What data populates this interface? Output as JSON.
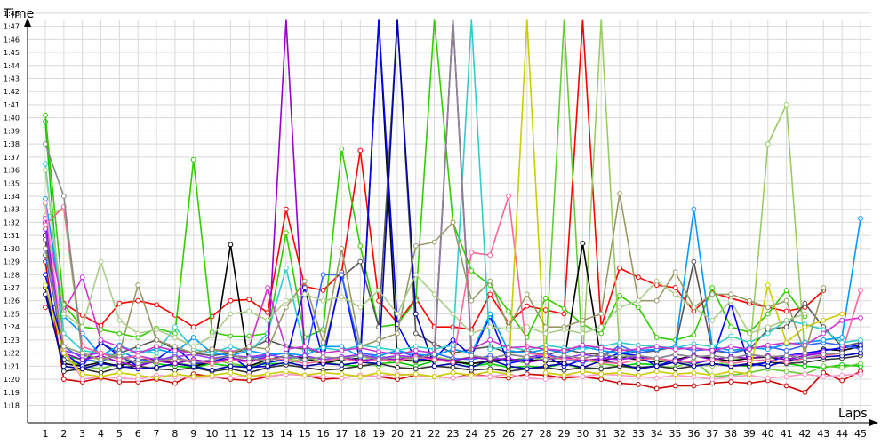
{
  "chart_data": {
    "type": "line",
    "xlabel": "Laps",
    "ylabel": "Time",
    "grid": true,
    "legend": "none",
    "x": [
      1,
      2,
      3,
      4,
      5,
      6,
      7,
      8,
      9,
      10,
      11,
      12,
      13,
      14,
      15,
      16,
      17,
      18,
      19,
      20,
      21,
      22,
      23,
      24,
      25,
      26,
      27,
      28,
      29,
      30,
      31,
      32,
      33,
      34,
      35,
      36,
      37,
      38,
      39,
      40,
      41,
      42,
      43,
      44,
      45
    ],
    "y_ticks": [
      "1:18",
      "1:19",
      "1:20",
      "1:21",
      "1:22",
      "1:23",
      "1:24",
      "1:25",
      "1:26",
      "1:27",
      "1:28",
      "1:29",
      "1:30",
      "1:31",
      "1:32",
      "1:33",
      "1:34",
      "1:35",
      "1:36",
      "1:37",
      "1:38",
      "1:39",
      "1:40",
      "1:41",
      "1:42",
      "1:43",
      "1:44",
      "1:45",
      "1:46",
      "1:47",
      "1:48"
    ],
    "ylim": [
      77.5,
      110
    ],
    "series": [
      {
        "color": "#ff0000",
        "values": [
          85.5,
          85.8,
          84.9,
          84.1,
          85.8,
          86.0,
          85.7,
          84.9,
          84.0,
          84.8,
          86.0,
          86.1,
          85.1,
          93.0,
          87.1,
          86.8,
          88.2,
          97.5,
          86.0,
          84.3,
          86.2,
          84.0,
          84.0,
          83.8,
          86.5,
          84.3,
          85.6,
          85.3,
          85.0,
          107.5,
          84.0,
          88.5,
          87.8,
          87.2,
          87.0,
          85.2,
          86.6,
          86.2,
          85.8,
          85.5,
          85.2,
          85.5,
          86.8,
          null,
          null
        ]
      },
      {
        "color": "#cc0000",
        "values": [
          89.0,
          80.0,
          79.8,
          80.1,
          79.8,
          79.8,
          80.0,
          79.7,
          80.4,
          80.2,
          80.0,
          79.9,
          80.2,
          80.4,
          80.3,
          80.0,
          80.1,
          80.3,
          80.2,
          80.0,
          80.3,
          80.2,
          80.1,
          80.4,
          80.2,
          80.1,
          80.4,
          80.3,
          80.1,
          80.2,
          80.0,
          79.7,
          79.6,
          79.3,
          79.5,
          79.5,
          79.7,
          79.8,
          79.7,
          79.9,
          79.5,
          79.0,
          80.5,
          79.9,
          80.6
        ]
      },
      {
        "color": "#00cc00",
        "values": [
          99.7,
          81.8,
          81.5,
          81.3,
          81.0,
          81.5,
          81.2,
          81.0,
          80.9,
          81.2,
          81.0,
          81.0,
          81.2,
          81.2,
          81.5,
          81.3,
          81.1,
          81.0,
          81.2,
          81.3,
          81.0,
          81.4,
          81.5,
          81.0,
          81.2,
          80.9,
          81.0,
          80.9,
          81.2,
          80.8,
          80.8,
          81.0,
          81.2,
          81.1,
          81.3,
          81.0,
          81.2,
          81.1,
          81.0,
          81.3,
          81.2,
          81.0,
          80.9,
          81.1,
          81.0
        ]
      },
      {
        "color": "#33cc00",
        "values": [
          100.2,
          85.7,
          84.0,
          83.8,
          83.5,
          83.2,
          83.9,
          83.5,
          96.8,
          83.6,
          83.3,
          83.3,
          83.5,
          91.2,
          83.2,
          83.8,
          97.6,
          90.2,
          84.0,
          84.2,
          86.0,
          110.0,
          92.0,
          88.3,
          87.2,
          85.2,
          83.2,
          86.2,
          85.4,
          84.2,
          83.5,
          86.4,
          85.5,
          83.2,
          83.0,
          83.4,
          87.0,
          84.0,
          83.6,
          85.0,
          86.8,
          84.8,
          null,
          null,
          null
        ]
      },
      {
        "color": "#66cc33",
        "values": [
          93.4,
          81.5,
          81.0,
          80.8,
          81.2,
          81.0,
          81.4,
          81.3,
          81.0,
          81.5,
          81.2,
          81.0,
          81.3,
          81.5,
          81.7,
          81.3,
          81.6,
          81.4,
          81.0,
          81.6,
          81.3,
          81.5,
          81.4,
          81.2,
          81.3,
          81.5,
          81.2,
          81.8,
          110.0,
          81.5,
          81.2,
          81.0,
          80.8,
          81.0,
          80.9,
          81.5,
          80.2,
          80.3,
          80.5,
          80.8,
          80.6,
          80.4,
          81.0,
          80.9,
          81.2
        ]
      },
      {
        "color": "#99cc66",
        "values": [
          92.5,
          93.0,
          81.8,
          81.5,
          81.4,
          81.2,
          81.7,
          81.3,
          81.0,
          81.3,
          81.5,
          81.7,
          81.6,
          81.4,
          81.5,
          81.7,
          81.6,
          81.4,
          81.9,
          81.3,
          81.6,
          81.7,
          81.5,
          81.7,
          81.6,
          81.4,
          81.7,
          81.5,
          81.6,
          81.4,
          110.0,
          81.9,
          81.7,
          81.5,
          81.3,
          81.2,
          81.0,
          81.5,
          81.6,
          98.0,
          101.0,
          81.8,
          82.2,
          null,
          null
        ]
      },
      {
        "color": "#000000",
        "values": [
          91.0,
          81.2,
          81.0,
          81.3,
          81.0,
          81.5,
          81.5,
          81.2,
          81.0,
          81.3,
          90.3,
          81.0,
          81.5,
          81.8,
          81.6,
          81.2,
          81.5,
          81.6,
          110.0,
          81.5,
          81.4,
          81.5,
          81.3,
          81.2,
          81.4,
          81.5,
          81.5,
          81.4,
          81.3,
          90.4,
          81.4,
          81.7,
          81.5,
          81.3,
          81.5,
          81.8,
          81.6,
          81.4,
          81.6,
          81.7,
          81.5,
          81.8,
          82.3,
          82.2,
          82.5
        ]
      },
      {
        "color": "#333333",
        "values": [
          87.0,
          80.6,
          80.8,
          80.5,
          80.9,
          81.0,
          80.8,
          80.7,
          80.9,
          80.6,
          80.8,
          80.5,
          80.9,
          81.1,
          80.9,
          80.7,
          80.8,
          81.0,
          81.2,
          80.9,
          80.8,
          81.0,
          80.9,
          80.7,
          80.8,
          80.6,
          80.8,
          80.9,
          80.7,
          80.9,
          80.8,
          81.0,
          80.9,
          81.0,
          80.8,
          81.0,
          81.2,
          81.0,
          81.1,
          81.3,
          81.2,
          81.3,
          81.5,
          81.6,
          81.8
        ]
      },
      {
        "color": "#555555",
        "values": [
          90.7,
          81.5,
          81.2,
          82.8,
          82.0,
          82.5,
          83.0,
          82.3,
          82.0,
          81.8,
          82.0,
          82.3,
          83.0,
          82.5,
          82.3,
          82.0,
          87.8,
          89.0,
          84.0,
          110.0,
          83.5,
          82.7,
          82.0,
          82.3,
          82.5,
          82.0,
          82.2,
          81.8,
          82.3,
          82.0,
          81.9,
          82.3,
          82.0,
          82.2,
          82.5,
          89.0,
          82.2,
          82.0,
          82.3,
          83.8,
          84.0,
          85.8,
          84.0,
          82.5,
          82.8
        ]
      },
      {
        "color": "#0000ff",
        "values": [
          88.0,
          82.0,
          81.0,
          82.8,
          81.8,
          81.0,
          81.5,
          82.5,
          81.2,
          81.3,
          81.8,
          80.8,
          81.3,
          81.5,
          87.0,
          81.5,
          88.0,
          81.3,
          107.6,
          84.2,
          81.5,
          81.6,
          83.0,
          81.8,
          84.8,
          81.2,
          81.5,
          81.8,
          81.0,
          81.5,
          81.5,
          82.0,
          81.8,
          81.0,
          81.5,
          81.2,
          81.5,
          85.8,
          81.0,
          81.3,
          81.8,
          82.0,
          82.2,
          82.4,
          82.6
        ]
      },
      {
        "color": "#0000aa",
        "values": [
          86.5,
          81.0,
          80.8,
          81.2,
          81.0,
          80.8,
          80.9,
          81.2,
          81.0,
          80.7,
          81.0,
          80.9,
          81.0,
          81.3,
          81.0,
          81.2,
          81.1,
          81.3,
          81.2,
          110.0,
          85.0,
          81.0,
          81.2,
          80.9,
          81.5,
          81.0,
          80.8,
          81.0,
          81.2,
          80.9,
          81.4,
          81.2,
          80.8,
          81.0,
          81.3,
          81.0,
          81.2,
          81.0,
          81.2,
          81.0,
          81.4,
          81.6,
          81.7,
          81.8,
          82.0
        ]
      },
      {
        "color": "#3366ff",
        "values": [
          89.5,
          82.5,
          81.6,
          81.3,
          82.2,
          81.5,
          81.4,
          81.8,
          81.2,
          81.5,
          81.8,
          81.6,
          81.8,
          82.0,
          81.4,
          88.0,
          88.0,
          82.0,
          81.8,
          82.2,
          81.7,
          82.0,
          81.6,
          81.5,
          81.8,
          81.3,
          81.6,
          82.0,
          81.5,
          81.3,
          81.6,
          82.6,
          82.0,
          82.3,
          82.5,
          82.2,
          82.3,
          82.0,
          82.4,
          82.5,
          82.2,
          82.6,
          82.8,
          82.6,
          82.3
        ]
      },
      {
        "color": "#0099ff",
        "values": [
          93.8,
          84.8,
          83.5,
          81.8,
          82.6,
          82.0,
          82.3,
          82.0,
          83.2,
          82.0,
          81.8,
          82.2,
          81.9,
          82.0,
          81.8,
          82.5,
          82.5,
          81.7,
          81.8,
          82.2,
          81.9,
          81.8,
          82.3,
          82.0,
          85.0,
          82.2,
          82.0,
          82.3,
          82.0,
          82.5,
          82.2,
          82.0,
          82.2,
          82.3,
          82.5,
          93.0,
          82.5,
          82.2,
          82.4,
          82.3,
          82.7,
          82.8,
          83.0,
          83.2,
          92.3
        ]
      },
      {
        "color": "#33cccc",
        "values": [
          96.5,
          83.5,
          82.2,
          82.0,
          81.8,
          82.2,
          82.0,
          84.0,
          82.3,
          82.0,
          82.5,
          82.1,
          83.5,
          88.5,
          82.2,
          82.4,
          82.2,
          82.6,
          82.4,
          82.2,
          82.5,
          82.3,
          82.6,
          110.0,
          82.3,
          82.5,
          82.2,
          82.6,
          82.4,
          82.3,
          82.5,
          82.8,
          82.6,
          82.5,
          82.4,
          82.7,
          82.5,
          83.3,
          82.8,
          83.5,
          84.5,
          84.2,
          83.8,
          82.8,
          83.0
        ]
      },
      {
        "color": "#9900cc",
        "values": [
          92.0,
          82.0,
          81.5,
          81.8,
          81.3,
          81.0,
          81.4,
          81.2,
          81.5,
          81.3,
          81.6,
          81.4,
          81.7,
          110.0,
          81.8,
          81.5,
          81.7,
          81.4,
          81.6,
          81.5,
          81.8,
          81.6,
          81.4,
          81.7,
          81.5,
          81.6,
          81.3,
          81.5,
          81.7,
          81.4,
          81.6,
          81.5,
          81.7,
          81.6,
          81.4,
          81.8,
          81.5,
          81.7,
          81.6,
          81.8,
          81.5,
          81.8,
          82.0,
          null,
          null
        ]
      },
      {
        "color": "#cc33cc",
        "values": [
          92.3,
          85.2,
          87.8,
          83.0,
          82.5,
          82.0,
          82.5,
          82.2,
          82.0,
          82.3,
          82.1,
          82.4,
          87.0,
          82.3,
          82.5,
          82.0,
          82.2,
          82.4,
          82.1,
          81.9,
          82.2,
          82.0,
          110.0,
          82.3,
          83.0,
          82.4,
          82.5,
          82.3,
          82.2,
          82.6,
          82.4,
          82.2,
          82.3,
          82.5,
          82.3,
          82.4,
          82.2,
          82.5,
          82.3,
          82.6,
          82.8,
          82.6,
          83.5,
          84.5,
          84.7
        ]
      },
      {
        "color": "#9933ff",
        "values": [
          91.5,
          82.2,
          81.8,
          82.0,
          81.6,
          81.8,
          81.5,
          81.7,
          81.9,
          81.6,
          81.8,
          81.7,
          81.9,
          81.6,
          81.8,
          81.5,
          81.7,
          81.9,
          81.6,
          81.8,
          81.7,
          81.5,
          110.0,
          81.8,
          81.6,
          81.9,
          81.7,
          81.8,
          81.6,
          81.9,
          81.7,
          81.5,
          81.8,
          81.6,
          81.9,
          81.7,
          81.8,
          81.6,
          81.9,
          81.7,
          81.8,
          81.9,
          82.1,
          null,
          null
        ]
      },
      {
        "color": "#ff6699",
        "values": [
          91.8,
          93.2,
          82.5,
          82.0,
          81.5,
          81.8,
          81.3,
          81.6,
          81.4,
          81.2,
          81.5,
          81.3,
          81.6,
          81.5,
          81.2,
          81.4,
          81.6,
          81.3,
          81.5,
          81.4,
          81.7,
          81.5,
          81.3,
          89.7,
          89.5,
          94.0,
          82.0,
          81.8,
          81.5,
          81.6,
          81.3,
          81.2,
          81.5,
          81.6,
          81.4,
          81.3,
          81.5,
          81.2,
          81.4,
          81.5,
          81.3,
          81.6,
          81.8,
          82.0,
          86.8
        ]
      },
      {
        "color": "#ff99cc",
        "values": [
          93.5,
          82.3,
          80.0,
          80.2,
          80.1,
          80.0,
          80.3,
          80.2,
          80.1,
          80.2,
          80.1,
          80.3,
          80.2,
          80.4,
          80.3,
          80.2,
          80.1,
          80.3,
          80.2,
          80.4,
          80.3,
          80.2,
          80.1,
          80.3,
          80.2,
          80.4,
          80.1,
          80.0,
          80.3,
          80.2,
          80.4,
          80.3,
          80.2,
          80.1,
          80.3,
          80.2,
          80.0,
          80.2,
          80.3,
          80.1,
          80.2,
          80.4,
          80.2,
          80.3,
          80.4
        ]
      },
      {
        "color": "#cccc00",
        "values": [
          87.2,
          82.0,
          80.4,
          80.2,
          80.5,
          80.3,
          80.1,
          80.4,
          80.2,
          80.3,
          80.5,
          80.2,
          80.4,
          80.6,
          80.3,
          80.5,
          80.4,
          80.2,
          80.5,
          80.3,
          80.4,
          80.2,
          80.5,
          80.3,
          80.6,
          80.4,
          110.0,
          80.5,
          80.3,
          80.6,
          80.4,
          80.5,
          80.3,
          80.6,
          80.4,
          80.5,
          80.3,
          80.6,
          80.4,
          87.2,
          82.8,
          84.0,
          84.5,
          85.0,
          null
        ]
      },
      {
        "color": "#888888",
        "values": [
          98.0,
          94.0,
          82.0,
          81.5,
          81.8,
          81.2,
          81.4,
          81.6,
          81.3,
          81.5,
          81.8,
          81.6,
          81.4,
          81.8,
          81.5,
          81.7,
          81.6,
          81.8,
          81.5,
          81.7,
          81.6,
          81.9,
          110.0,
          81.8,
          81.6,
          81.9,
          81.7,
          81.5,
          81.8,
          81.6,
          81.9,
          81.7,
          81.8,
          81.6,
          81.9,
          81.7,
          81.8,
          81.6,
          81.9,
          81.7,
          81.8,
          81.6,
          81.9,
          82.0,
          null
        ]
      },
      {
        "color": "#999966",
        "values": [
          90.0,
          82.5,
          82.0,
          81.5,
          82.0,
          87.2,
          83.0,
          82.5,
          82.0,
          82.3,
          82.0,
          82.5,
          82.3,
          85.5,
          87.5,
          82.8,
          90.0,
          82.5,
          83.0,
          83.5,
          90.2,
          90.5,
          92.0,
          86.0,
          87.5,
          84.0,
          86.5,
          84.0,
          84.0,
          84.5,
          85.0,
          94.2,
          86.0,
          86.0,
          88.2,
          85.5,
          86.5,
          86.5,
          86.0,
          85.5,
          86.0,
          82.0,
          87.0,
          null,
          null
        ]
      },
      {
        "color": "#aacc88",
        "values": [
          96.0,
          85.0,
          84.0,
          89.0,
          84.5,
          83.5,
          83.8,
          83.2,
          82.5,
          83.3,
          85.0,
          85.2,
          84.5,
          86.0,
          86.5,
          86.0,
          86.3,
          85.5,
          86.8,
          85.0,
          88.0,
          86.5,
          85.0,
          83.5,
          84.0,
          83.8,
          84.0,
          83.5,
          83.8,
          83.5,
          84.0,
          85.5,
          86.0,
          87.5,
          86.5,
          85.5,
          84.5,
          86.0,
          83.5,
          84.0,
          84.5,
          85.0,
          null,
          null,
          null
        ]
      }
    ]
  }
}
